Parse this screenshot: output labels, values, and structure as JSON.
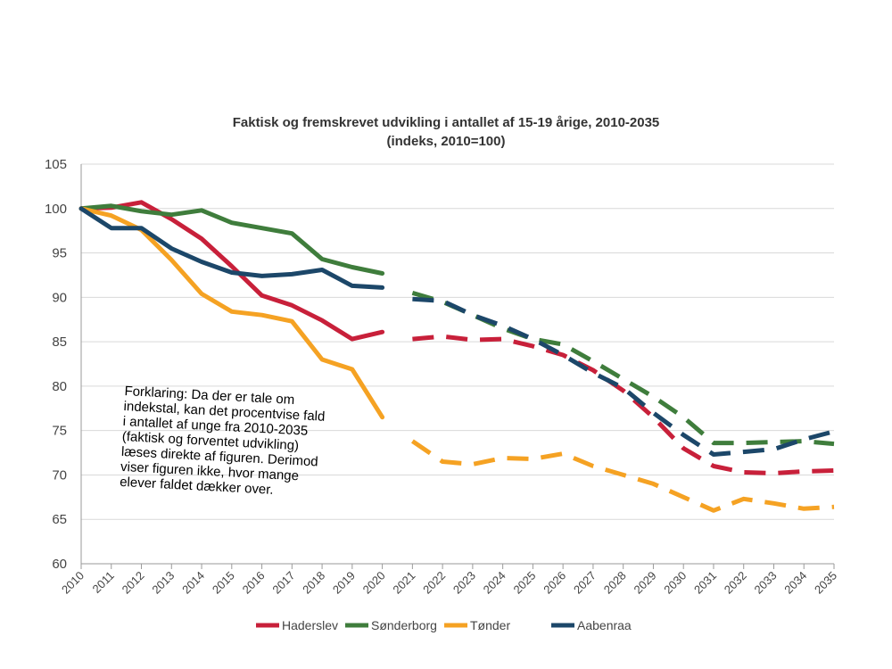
{
  "chart_data": {
    "type": "line",
    "title": "Faktisk og fremskrevet udvikling i antallet af 15-19 årige, 2010-2035",
    "subtitle": "(indeks, 2010=100)",
    "xlabel": "",
    "ylabel": "",
    "ylim": [
      60,
      105
    ],
    "yticks": [
      "60",
      "65",
      "70",
      "75",
      "80",
      "85",
      "90",
      "95",
      "100",
      "105"
    ],
    "categories": [
      "2010",
      "2011",
      "2012",
      "2013",
      "2014",
      "2015",
      "2016",
      "2017",
      "2018",
      "2019",
      "2020",
      "2021",
      "2022",
      "2023",
      "2024",
      "2025",
      "2026",
      "2027",
      "2028",
      "2029",
      "2030",
      "2031",
      "2032",
      "2033",
      "2034",
      "2035"
    ],
    "actual_through": "2020",
    "projected_from": "2021",
    "grid": true,
    "legend_position": "bottom",
    "series": [
      {
        "name": "Haderslev",
        "color": "#c8203a",
        "values": [
          100,
          100.1,
          100.7,
          98.8,
          96.6,
          93.5,
          90.2,
          89.1,
          87.4,
          85.3,
          86.1,
          85.3,
          85.6,
          85.2,
          85.3,
          84.5,
          83.5,
          81.8,
          79.5,
          76.5,
          73.0,
          71.0,
          70.3,
          70.2,
          70.4,
          70.5
        ]
      },
      {
        "name": "Sønderborg",
        "color": "#3f7d3c",
        "values": [
          100,
          100.3,
          99.7,
          99.3,
          99.8,
          98.4,
          97.8,
          97.2,
          94.3,
          93.4,
          92.7,
          90.5,
          89.5,
          88.0,
          86.5,
          85.3,
          84.7,
          82.8,
          80.8,
          78.8,
          76.5,
          73.6,
          73.6,
          73.7,
          73.8,
          73.5
        ]
      },
      {
        "name": "Tønder",
        "color": "#f5a223",
        "values": [
          100,
          99.2,
          97.6,
          94.2,
          90.4,
          88.4,
          88.0,
          87.3,
          83.0,
          81.9,
          76.5,
          73.8,
          71.5,
          71.2,
          71.9,
          71.8,
          72.4,
          71.0,
          70.0,
          69.0,
          67.5,
          66.0,
          67.3,
          66.8,
          66.2,
          66.4
        ]
      },
      {
        "name": "Aabenraa",
        "color": "#1c4769",
        "values": [
          100,
          97.8,
          97.8,
          95.5,
          94.0,
          92.8,
          92.4,
          92.6,
          93.1,
          91.3,
          91.1,
          89.8,
          89.6,
          88.0,
          86.8,
          85.3,
          83.5,
          81.5,
          79.8,
          77.0,
          74.5,
          72.3,
          72.6,
          72.9,
          74.0,
          74.9
        ]
      }
    ],
    "annotation": {
      "lines": [
        "Forklaring: Da der er tale om",
        "indekstal, kan det procentvise fald",
        "i antallet af unge fra 2010-2035",
        "(faktisk og forventet udvikling)",
        "læses direkte af figuren. Derimod",
        "viser figuren ikke, hvor mange",
        "elever faldet dækker over."
      ]
    }
  }
}
